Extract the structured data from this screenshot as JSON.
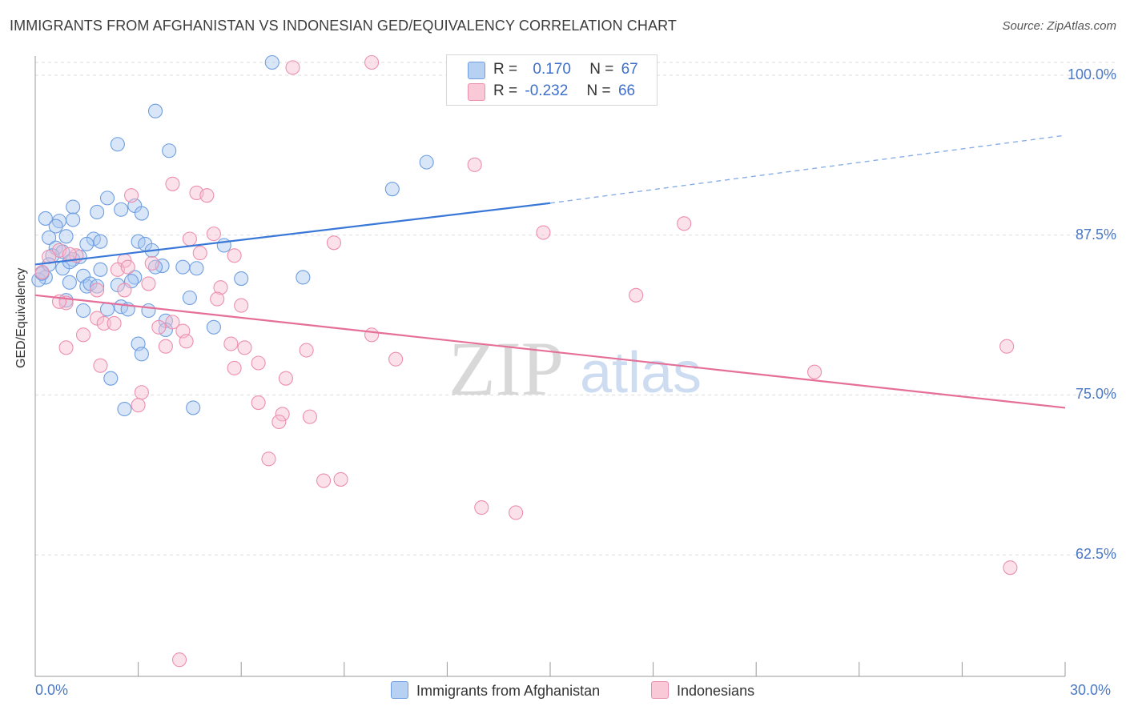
{
  "title": "IMMIGRANTS FROM AFGHANISTAN VS INDONESIAN GED/EQUIVALENCY CORRELATION CHART",
  "source": "Source: ZipAtlas.com",
  "watermark": {
    "zip": "ZIP",
    "atlas": "atlas"
  },
  "colors": {
    "blue_fill": "#a9c8f0",
    "blue_stroke": "#6f9ee0",
    "blue_line": "#3a78d8",
    "pink_fill": "#f7bfd0",
    "pink_stroke": "#ec8fae",
    "pink_line": "#e56f99",
    "axis_text": "#4a78c4",
    "grid": "#dddddd"
  },
  "legend": {
    "rows": [
      {
        "r_label": "R =",
        "r_value": "0.170",
        "n_label": "N =",
        "n_value": "67",
        "series": "blue"
      },
      {
        "r_label": "R =",
        "r_value": "-0.232",
        "n_label": "N =",
        "n_value": "66",
        "series": "pink"
      }
    ]
  },
  "bottom_legend": [
    {
      "label": "Immigrants from Afghanistan",
      "series": "blue"
    },
    {
      "label": "Indonesians",
      "series": "pink"
    }
  ],
  "chart_data": {
    "type": "scatter",
    "ylabel": "GED/Equivalency",
    "xlim": [
      0,
      30
    ],
    "ylim": [
      53,
      101.5
    ],
    "x_tick_labels": [
      "0.0%",
      "30.0%"
    ],
    "y_tick_labels": [
      {
        "value": 100.0,
        "label": "100.0%"
      },
      {
        "value": 87.5,
        "label": "87.5%"
      },
      {
        "value": 75.0,
        "label": "75.0%"
      },
      {
        "value": 62.5,
        "label": "62.5%"
      }
    ],
    "grid": true,
    "legend_position": "top-center",
    "series": [
      {
        "name": "Immigrants from Afghanistan",
        "color": "blue",
        "trend": {
          "x": [
            0,
            15.0
          ],
          "y": [
            85.2,
            90.0
          ],
          "dashed_to": {
            "x": 30,
            "y": 95.3
          }
        },
        "points": [
          [
            6.9,
            101.0
          ],
          [
            3.5,
            97.2
          ],
          [
            2.4,
            94.6
          ],
          [
            3.9,
            94.1
          ],
          [
            11.4,
            93.2
          ],
          [
            10.4,
            91.1
          ],
          [
            2.1,
            90.4
          ],
          [
            1.1,
            89.7
          ],
          [
            1.8,
            89.3
          ],
          [
            2.9,
            89.8
          ],
          [
            3.1,
            89.2
          ],
          [
            2.5,
            89.5
          ],
          [
            0.3,
            88.8
          ],
          [
            0.7,
            88.6
          ],
          [
            0.6,
            88.2
          ],
          [
            1.1,
            88.7
          ],
          [
            0.4,
            87.3
          ],
          [
            0.9,
            87.4
          ],
          [
            1.7,
            87.2
          ],
          [
            1.9,
            87.0
          ],
          [
            1.5,
            86.8
          ],
          [
            3.0,
            87.0
          ],
          [
            3.2,
            86.8
          ],
          [
            5.5,
            86.7
          ],
          [
            0.6,
            86.5
          ],
          [
            0.8,
            86.2
          ],
          [
            0.5,
            85.9
          ],
          [
            1.3,
            85.8
          ],
          [
            1.1,
            85.6
          ],
          [
            3.4,
            86.3
          ],
          [
            3.7,
            85.1
          ],
          [
            4.3,
            85.0
          ],
          [
            4.7,
            84.9
          ],
          [
            0.8,
            84.9
          ],
          [
            0.2,
            84.5
          ],
          [
            0.3,
            84.2
          ],
          [
            1.9,
            84.8
          ],
          [
            1.4,
            84.3
          ],
          [
            2.9,
            84.2
          ],
          [
            6.0,
            84.1
          ],
          [
            7.8,
            84.2
          ],
          [
            1.0,
            83.8
          ],
          [
            1.5,
            83.5
          ],
          [
            1.6,
            83.7
          ],
          [
            2.8,
            83.9
          ],
          [
            4.5,
            82.6
          ],
          [
            0.9,
            82.4
          ],
          [
            2.1,
            81.7
          ],
          [
            1.4,
            81.6
          ],
          [
            2.5,
            81.9
          ],
          [
            2.7,
            81.7
          ],
          [
            3.3,
            81.6
          ],
          [
            3.8,
            80.8
          ],
          [
            5.2,
            80.3
          ],
          [
            3.8,
            80.1
          ],
          [
            3.0,
            79.0
          ],
          [
            3.1,
            78.2
          ],
          [
            2.2,
            76.3
          ],
          [
            2.6,
            73.9
          ],
          [
            4.6,
            74.0
          ],
          [
            0.1,
            84.0
          ],
          [
            0.2,
            84.5
          ],
          [
            1.0,
            85.4
          ],
          [
            1.8,
            83.5
          ],
          [
            3.5,
            85.0
          ],
          [
            2.4,
            83.6
          ],
          [
            0.4,
            85.2
          ]
        ]
      },
      {
        "name": "Indonesians",
        "color": "pink",
        "trend": {
          "x": [
            0,
            30
          ],
          "y": [
            82.8,
            74.0
          ]
        },
        "points": [
          [
            9.8,
            101.0
          ],
          [
            7.5,
            100.6
          ],
          [
            12.8,
            93.0
          ],
          [
            4.0,
            91.5
          ],
          [
            4.7,
            90.8
          ],
          [
            5.0,
            90.6
          ],
          [
            2.8,
            90.6
          ],
          [
            18.9,
            88.4
          ],
          [
            14.8,
            87.7
          ],
          [
            5.2,
            87.6
          ],
          [
            4.5,
            87.2
          ],
          [
            8.7,
            86.9
          ],
          [
            0.7,
            86.3
          ],
          [
            1.2,
            85.9
          ],
          [
            4.8,
            86.1
          ],
          [
            5.8,
            85.9
          ],
          [
            2.6,
            85.5
          ],
          [
            3.4,
            85.3
          ],
          [
            0.4,
            85.8
          ],
          [
            0.2,
            84.6
          ],
          [
            2.4,
            84.8
          ],
          [
            1.8,
            83.2
          ],
          [
            3.3,
            83.7
          ],
          [
            2.6,
            83.2
          ],
          [
            5.4,
            83.4
          ],
          [
            0.9,
            82.2
          ],
          [
            0.7,
            82.3
          ],
          [
            5.3,
            82.5
          ],
          [
            6.0,
            82.0
          ],
          [
            17.5,
            82.8
          ],
          [
            1.8,
            81.0
          ],
          [
            2.0,
            80.6
          ],
          [
            2.3,
            80.6
          ],
          [
            4.0,
            80.7
          ],
          [
            3.6,
            80.3
          ],
          [
            4.3,
            80.0
          ],
          [
            1.4,
            79.7
          ],
          [
            9.8,
            79.7
          ],
          [
            4.4,
            79.2
          ],
          [
            3.8,
            78.8
          ],
          [
            0.9,
            78.7
          ],
          [
            6.1,
            78.7
          ],
          [
            7.9,
            78.5
          ],
          [
            10.5,
            77.8
          ],
          [
            28.3,
            78.8
          ],
          [
            1.9,
            77.3
          ],
          [
            5.8,
            77.1
          ],
          [
            6.5,
            77.5
          ],
          [
            22.7,
            76.8
          ],
          [
            7.3,
            76.3
          ],
          [
            3.1,
            75.2
          ],
          [
            6.5,
            74.4
          ],
          [
            3.0,
            74.2
          ],
          [
            7.2,
            73.5
          ],
          [
            8.0,
            73.3
          ],
          [
            7.1,
            72.9
          ],
          [
            6.8,
            70.0
          ],
          [
            8.4,
            68.3
          ],
          [
            8.9,
            68.4
          ],
          [
            13.0,
            66.2
          ],
          [
            14.0,
            65.8
          ],
          [
            28.4,
            61.5
          ],
          [
            4.2,
            54.3
          ],
          [
            2.7,
            85.0
          ],
          [
            1.0,
            86.0
          ],
          [
            5.7,
            79.0
          ]
        ]
      }
    ]
  }
}
